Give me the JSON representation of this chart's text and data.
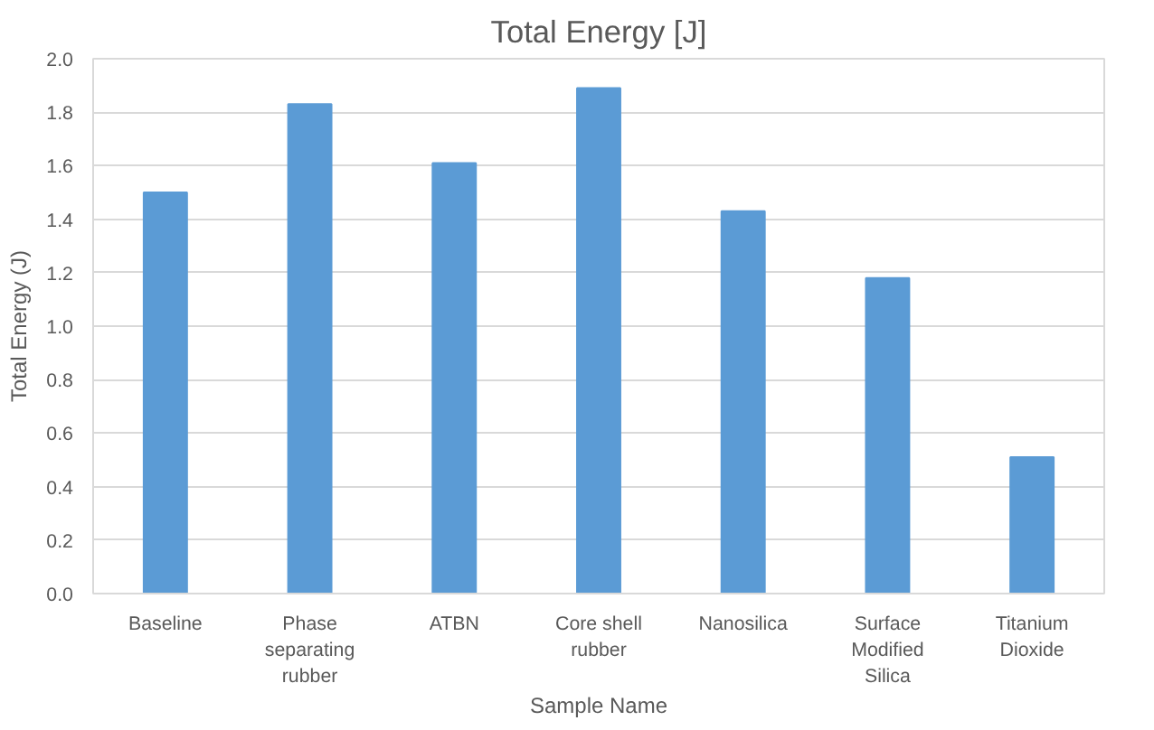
{
  "chart_data": {
    "type": "bar",
    "title": "Total Energy [J]",
    "xlabel": "Sample Name",
    "ylabel": "Total Energy (J)",
    "categories": [
      "Baseline",
      "Phase\nseparating\nrubber",
      "ATBN",
      "Core shell\nrubber",
      "Nanosilica",
      "Surface\nModified\nSilica",
      "Titanium\nDioxide"
    ],
    "values": [
      1.5,
      1.83,
      1.61,
      1.89,
      1.43,
      1.18,
      0.51
    ],
    "color": "#5b9bd5",
    "ylim": [
      0,
      2.0
    ],
    "yticks": [
      {
        "value": 0,
        "label": "0.0"
      },
      0.2,
      0.4,
      0.6,
      0.8,
      {
        "value": 1,
        "label": "1.0"
      },
      1.2,
      1.4,
      1.6,
      1.8,
      {
        "value": 2,
        "label": "2.0"
      }
    ],
    "grid": "y"
  }
}
